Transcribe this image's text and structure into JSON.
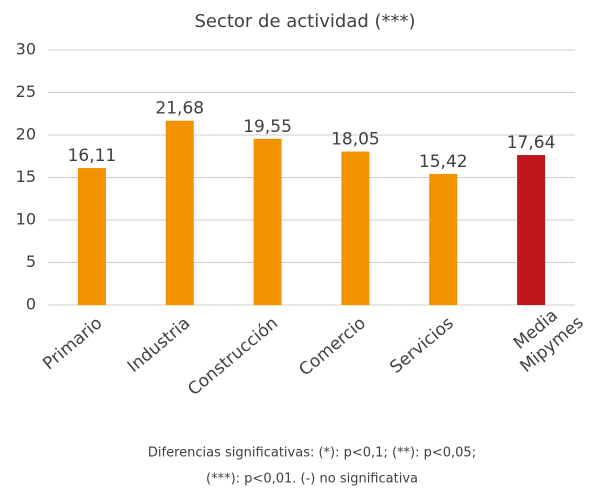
{
  "chart_data": {
    "type": "bar",
    "title": "Sector de actividad (***)",
    "categories": [
      "Primario",
      "Industria",
      "Construcción",
      "Comercio",
      "Servicios",
      "Media Mipymes"
    ],
    "values": [
      16.11,
      21.68,
      19.55,
      18.05,
      15.42,
      17.64
    ],
    "value_labels": [
      "16,11",
      "21,68",
      "19,55",
      "18,05",
      "15,42",
      "17,64"
    ],
    "colors": [
      "#f39200",
      "#f39200",
      "#f39200",
      "#f39200",
      "#f39200",
      "#c1161c"
    ],
    "ylim": [
      0,
      30
    ],
    "yticks": [
      0,
      5,
      10,
      15,
      20,
      25,
      30
    ],
    "grid": true,
    "notes": [
      "Diferencias significativas: (*): p<0,1; (**): p<0,05;",
      "(***): p<0,01. (-) no significativa"
    ]
  }
}
